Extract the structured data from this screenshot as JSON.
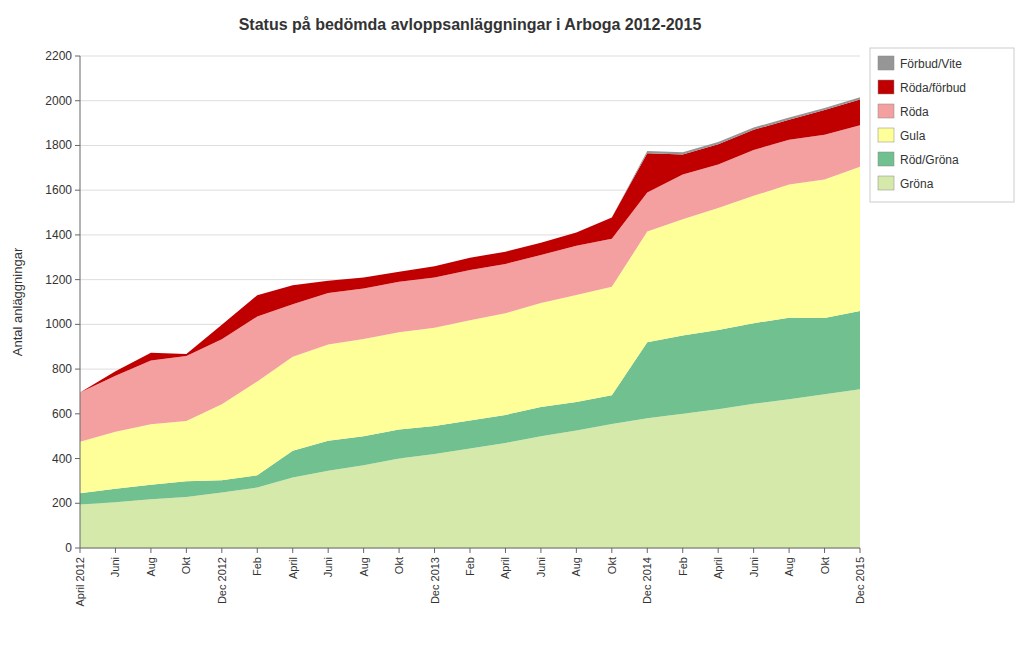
{
  "chart_data": {
    "type": "area",
    "stacked": true,
    "title": "Status på bedömda avloppsanläggningar i Arboga 2012-2015",
    "ylabel": "Antal anläggningar",
    "categories": [
      "April 2012",
      "Juni",
      "Aug",
      "Okt",
      "Dec 2012",
      "Feb",
      "April",
      "Juni",
      "Aug",
      "Okt",
      "Dec 2013",
      "Feb",
      "April",
      "Juni",
      "Aug",
      "Okt",
      "Dec 2014",
      "Feb",
      "April",
      "Juni",
      "Aug",
      "Okt",
      "Dec 2015"
    ],
    "series": [
      {
        "name": "Gröna",
        "color": "#d5eaaa",
        "values": [
          195,
          205,
          218,
          228,
          248,
          270,
          315,
          345,
          370,
          400,
          420,
          445,
          470,
          500,
          525,
          555,
          580,
          600,
          620,
          645,
          665,
          688,
          710
        ]
      },
      {
        "name": "Röd/Gröna",
        "color": "#70c090",
        "values": [
          50,
          60,
          65,
          70,
          55,
          55,
          120,
          135,
          130,
          130,
          125,
          125,
          125,
          130,
          128,
          128,
          340,
          350,
          355,
          360,
          365,
          340,
          350
        ]
      },
      {
        "name": "Gula",
        "color": "#ffff99",
        "values": [
          230,
          255,
          270,
          270,
          340,
          420,
          420,
          430,
          435,
          435,
          440,
          448,
          455,
          465,
          478,
          485,
          495,
          520,
          545,
          570,
          595,
          620,
          645
        ]
      },
      {
        "name": "Röda",
        "color": "#f4a0a0",
        "values": [
          220,
          250,
          285,
          290,
          290,
          290,
          235,
          230,
          225,
          225,
          225,
          225,
          220,
          215,
          220,
          215,
          175,
          200,
          195,
          205,
          200,
          200,
          185
        ]
      },
      {
        "name": "Röda/förbud",
        "color": "#c00000",
        "values": [
          0,
          20,
          35,
          10,
          65,
          95,
          85,
          55,
          50,
          45,
          50,
          55,
          55,
          55,
          60,
          95,
          175,
          90,
          90,
          90,
          90,
          110,
          115
        ]
      },
      {
        "name": "Förbud/Vite",
        "color": "#969696",
        "values": [
          0,
          0,
          0,
          0,
          0,
          0,
          0,
          0,
          0,
          0,
          0,
          0,
          0,
          0,
          0,
          0,
          10,
          10,
          10,
          10,
          10,
          10,
          10
        ]
      }
    ],
    "ylim": [
      0,
      2200
    ],
    "yticks": [
      0,
      200,
      400,
      600,
      800,
      1000,
      1200,
      1400,
      1600,
      1800,
      2000,
      2200
    ],
    "grid": true,
    "legend": "upper right"
  }
}
